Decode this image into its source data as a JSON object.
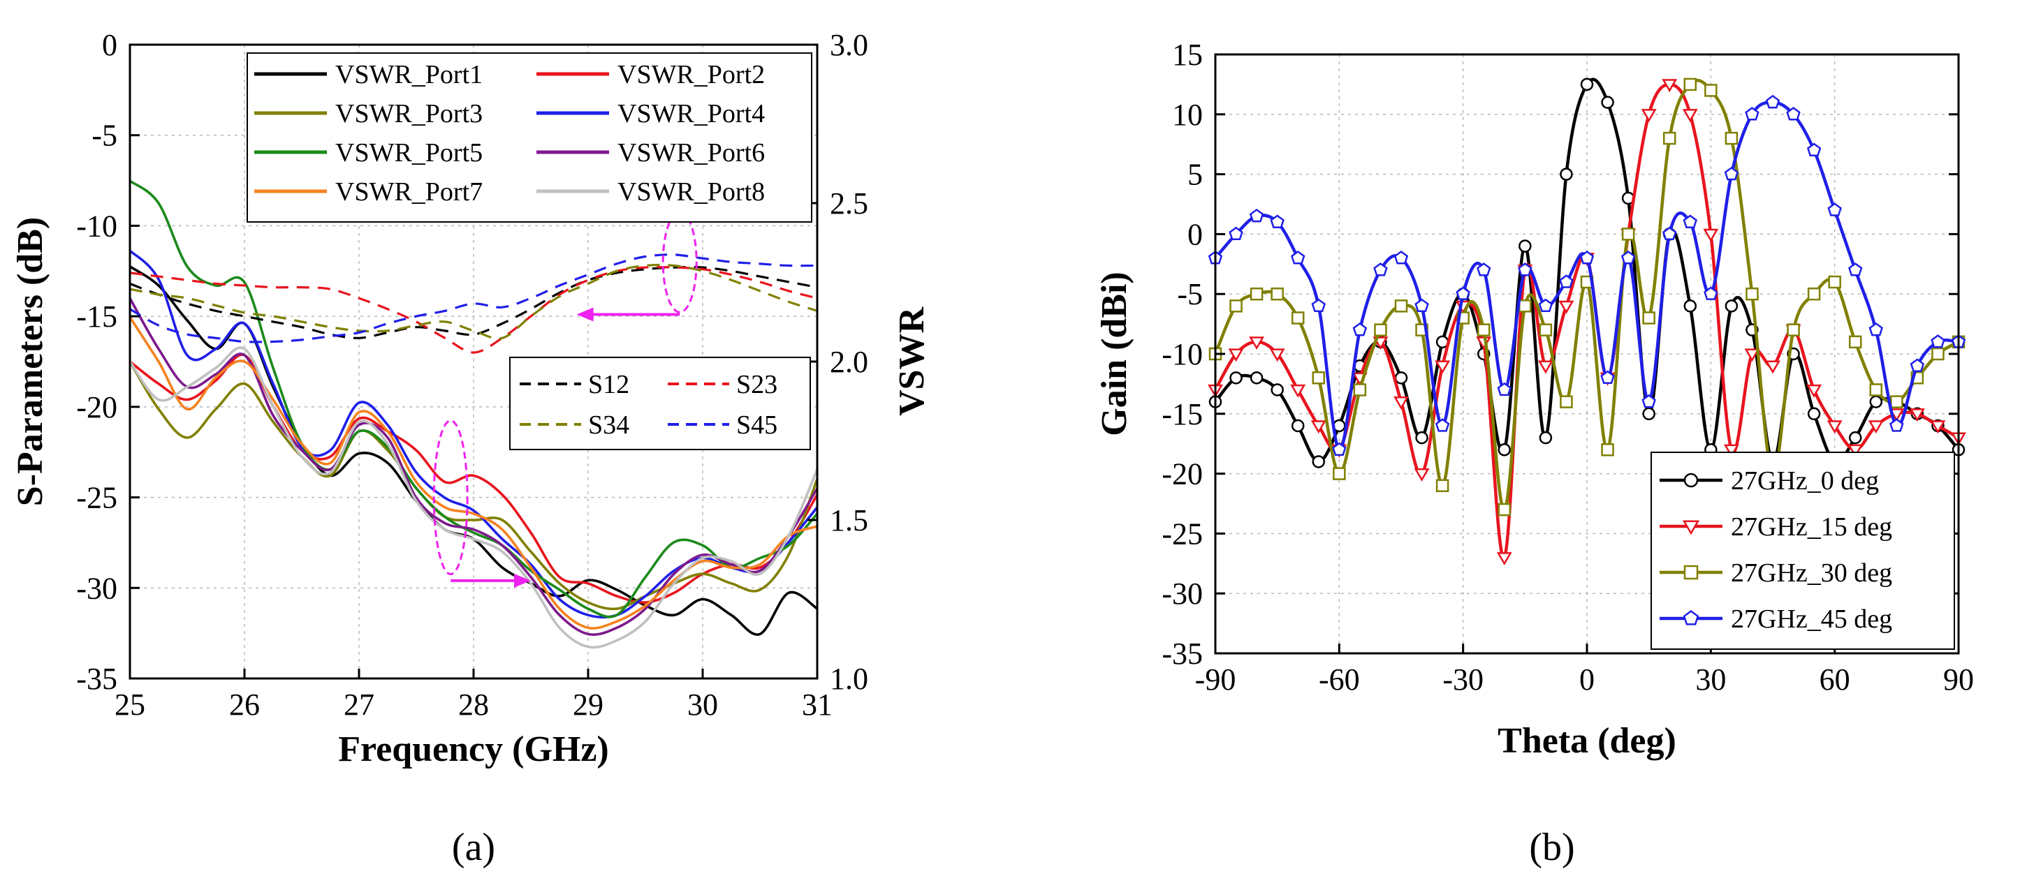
{
  "captions": {
    "a": "(a)",
    "b": "(b)"
  },
  "chart_data": [
    {
      "id": "a",
      "type": "line",
      "title": "",
      "xlabel": "Frequency (GHz)",
      "ylabel": "S-Parameters (dB)",
      "y2label": "VSWR",
      "xlim": [
        25,
        31
      ],
      "ylim": [
        -35,
        0
      ],
      "y2lim": [
        1.0,
        3.0
      ],
      "xticks": [
        "25",
        "26",
        "27",
        "28",
        "29",
        "30",
        "31"
      ],
      "yticks": [
        "0",
        "-5",
        "-10",
        "-15",
        "-20",
        "-25",
        "-30",
        "-35"
      ],
      "y2ticks": [
        "3.0",
        "2.5",
        "2.0",
        "1.5",
        "1.0"
      ],
      "grid": true,
      "legend_position": "top-right",
      "x": [
        25,
        25.25,
        25.5,
        25.75,
        26,
        26.25,
        26.5,
        26.75,
        27,
        27.25,
        27.5,
        27.75,
        28,
        28.25,
        28.5,
        28.75,
        29,
        29.25,
        29.5,
        29.75,
        30,
        30.25,
        30.5,
        30.75,
        31
      ],
      "series": [
        {
          "name": "VSWR_Port1",
          "axis": "y2",
          "color": "#000000",
          "style": "solid",
          "values": [
            2.3,
            2.24,
            2.13,
            2.04,
            2.12,
            1.92,
            1.74,
            1.64,
            1.71,
            1.68,
            1.56,
            1.47,
            1.44,
            1.35,
            1.3,
            1.26,
            1.31,
            1.28,
            1.23,
            1.2,
            1.25,
            1.2,
            1.14,
            1.27,
            1.22
          ]
        },
        {
          "name": "VSWR_Port2",
          "axis": "y2",
          "color": "#e8141e",
          "style": "solid",
          "values": [
            2.0,
            1.93,
            1.88,
            1.94,
            2.02,
            1.86,
            1.72,
            1.7,
            1.82,
            1.78,
            1.72,
            1.62,
            1.64,
            1.58,
            1.46,
            1.32,
            1.3,
            1.26,
            1.24,
            1.27,
            1.33,
            1.36,
            1.35,
            1.43,
            1.58
          ]
        },
        {
          "name": "VSWR_Port3",
          "axis": "y2",
          "color": "#808000",
          "style": "solid",
          "values": [
            2.0,
            1.85,
            1.76,
            1.85,
            1.93,
            1.81,
            1.7,
            1.64,
            1.78,
            1.72,
            1.6,
            1.51,
            1.5,
            1.5,
            1.4,
            1.3,
            1.24,
            1.22,
            1.26,
            1.3,
            1.33,
            1.3,
            1.28,
            1.39,
            1.63
          ]
        },
        {
          "name": "VSWR_Port4",
          "axis": "y2",
          "color": "#1f1fe8",
          "style": "solid",
          "values": [
            2.35,
            2.26,
            2.02,
            2.04,
            2.12,
            1.93,
            1.73,
            1.72,
            1.87,
            1.8,
            1.65,
            1.57,
            1.53,
            1.44,
            1.36,
            1.25,
            1.2,
            1.2,
            1.26,
            1.34,
            1.38,
            1.35,
            1.34,
            1.43,
            1.54
          ]
        },
        {
          "name": "VSWR_Port5",
          "axis": "y2",
          "color": "#1b8a1b",
          "style": "solid",
          "values": [
            2.57,
            2.5,
            2.3,
            2.24,
            2.25,
            1.98,
            1.74,
            1.66,
            1.78,
            1.73,
            1.6,
            1.51,
            1.46,
            1.42,
            1.34,
            1.28,
            1.22,
            1.2,
            1.32,
            1.43,
            1.42,
            1.35,
            1.38,
            1.42,
            1.52
          ]
        },
        {
          "name": "VSWR_Port6",
          "axis": "y2",
          "color": "#7d1a8c",
          "style": "solid",
          "values": [
            2.2,
            2.04,
            1.92,
            1.96,
            2.02,
            1.83,
            1.72,
            1.66,
            1.8,
            1.76,
            1.57,
            1.49,
            1.47,
            1.42,
            1.32,
            1.2,
            1.14,
            1.16,
            1.22,
            1.33,
            1.39,
            1.36,
            1.34,
            1.45,
            1.6
          ]
        },
        {
          "name": "VSWR_Port7",
          "axis": "y2",
          "color": "#f5821f",
          "style": "solid",
          "values": [
            2.14,
            2.0,
            1.85,
            1.95,
            2.0,
            1.88,
            1.74,
            1.68,
            1.84,
            1.78,
            1.62,
            1.54,
            1.52,
            1.47,
            1.35,
            1.22,
            1.16,
            1.18,
            1.23,
            1.31,
            1.37,
            1.35,
            1.36,
            1.45,
            1.48
          ]
        },
        {
          "name": "VSWR_Port8",
          "axis": "y2",
          "color": "#c0c0c0",
          "style": "solid",
          "values": [
            2.0,
            1.88,
            1.92,
            1.98,
            2.04,
            1.86,
            1.7,
            1.65,
            1.81,
            1.74,
            1.56,
            1.47,
            1.44,
            1.4,
            1.3,
            1.16,
            1.1,
            1.12,
            1.18,
            1.3,
            1.38,
            1.37,
            1.33,
            1.45,
            1.66
          ]
        },
        {
          "name": "S12",
          "axis": "y",
          "color": "#000000",
          "style": "dashed",
          "values": [
            -13.2,
            -13.8,
            -14.3,
            -14.7,
            -15,
            -15.3,
            -15.6,
            -16,
            -16.2,
            -15.9,
            -15.6,
            -15.8,
            -16,
            -15.4,
            -14.6,
            -13.7,
            -13,
            -12.6,
            -12.4,
            -12.3,
            -12.3,
            -12.5,
            -12.8,
            -13.1,
            -13.4
          ]
        },
        {
          "name": "S23",
          "axis": "y",
          "color": "#e8141e",
          "style": "dashed",
          "values": [
            -12.6,
            -12.8,
            -13,
            -13.2,
            -13.3,
            -13.4,
            -13.4,
            -13.5,
            -14,
            -14.6,
            -15.3,
            -16.2,
            -17,
            -16.2,
            -15,
            -13.8,
            -13,
            -12.5,
            -12.3,
            -12.3,
            -12.4,
            -12.7,
            -13.1,
            -13.6,
            -14
          ]
        },
        {
          "name": "S34",
          "axis": "y",
          "color": "#808000",
          "style": "dashed",
          "values": [
            -13.5,
            -13.8,
            -14,
            -14.4,
            -14.8,
            -15,
            -15.3,
            -15.6,
            -15.8,
            -15.8,
            -15.5,
            -15.3,
            -15.8,
            -16.2,
            -15,
            -13.9,
            -13.2,
            -12.5,
            -12.2,
            -12.2,
            -12.5,
            -13,
            -13.6,
            -14.2,
            -14.7
          ]
        },
        {
          "name": "S45",
          "axis": "y",
          "color": "#1f1fe8",
          "style": "dashed",
          "values": [
            -14.6,
            -15.5,
            -16,
            -16.2,
            -16.4,
            -16.4,
            -16.3,
            -16.1,
            -15.9,
            -15.4,
            -15,
            -14.7,
            -14.3,
            -14.5,
            -14,
            -13.3,
            -12.7,
            -12.1,
            -11.7,
            -11.6,
            -11.8,
            -12,
            -12.1,
            -12.2,
            -12.2
          ]
        }
      ],
      "annotations": [
        {
          "type": "ellipse",
          "color": "#ee22ee",
          "center": [
            27.8,
            -25
          ]
        },
        {
          "type": "arrow",
          "color": "#ee22ee",
          "from": [
            27.8,
            -29.6
          ],
          "to": [
            28.5,
            -29.6
          ]
        },
        {
          "type": "ellipse",
          "color": "#ee22ee",
          "center": [
            29.8,
            -12
          ]
        },
        {
          "type": "arrow",
          "color": "#ee22ee",
          "from": [
            29.8,
            -14.9
          ],
          "to": [
            28.9,
            -14.9
          ]
        }
      ]
    },
    {
      "id": "b",
      "type": "line",
      "title": "",
      "xlabel": "Theta (deg)",
      "ylabel": "Gain (dBi)",
      "xlim": [
        -90,
        90
      ],
      "ylim": [
        -35,
        15
      ],
      "xticks": [
        "-90",
        "-60",
        "-30",
        "0",
        "30",
        "60",
        "90"
      ],
      "yticks": [
        "15",
        "10",
        "5",
        "0",
        "-5",
        "-10",
        "-15",
        "-20",
        "-25",
        "-30",
        "-35"
      ],
      "grid": true,
      "legend_position": "bottom-right",
      "x": [
        -90,
        -85,
        -80,
        -75,
        -70,
        -65,
        -60,
        -55,
        -50,
        -45,
        -40,
        -35,
        -30,
        -25,
        -20,
        -15,
        -10,
        -5,
        0,
        5,
        10,
        15,
        20,
        25,
        30,
        35,
        40,
        45,
        50,
        55,
        60,
        65,
        70,
        75,
        80,
        85,
        90
      ],
      "series": [
        {
          "name": "27GHz_0 deg",
          "color": "#000000",
          "marker": "circle",
          "values": [
            -14,
            -12,
            -12,
            -13,
            -16,
            -19,
            -16,
            -11,
            -9,
            -12,
            -17,
            -9,
            -5,
            -10,
            -18,
            -1,
            -17,
            5,
            12.5,
            11,
            3,
            -15,
            0,
            -6,
            -18,
            -6,
            -8,
            -19,
            -10,
            -15,
            -19,
            -17,
            -14,
            -14,
            -15,
            -16,
            -18
          ]
        },
        {
          "name": "27GHz_15 deg",
          "color": "#e8141e",
          "marker": "triangle-down",
          "values": [
            -13,
            -10,
            -9,
            -10,
            -13,
            -16,
            -18,
            -12,
            -9,
            -14,
            -20,
            -11,
            -6,
            -9,
            -27,
            -3,
            -11,
            -6,
            -2,
            -12,
            0,
            10,
            12.5,
            10,
            0,
            -18,
            -10,
            -11,
            -8,
            -13,
            -16,
            -18,
            -16,
            -15,
            -15,
            -16,
            -17
          ]
        },
        {
          "name": "27GHz_30 deg",
          "color": "#808000",
          "marker": "square",
          "values": [
            -10,
            -6,
            -5,
            -5,
            -7,
            -12,
            -20,
            -13,
            -8,
            -6,
            -8,
            -21,
            -7,
            -8,
            -23,
            -6,
            -8,
            -14,
            -4,
            -18,
            0,
            -7,
            8,
            12.5,
            12,
            8,
            -5,
            -20,
            -8,
            -5,
            -4,
            -9,
            -13,
            -14,
            -12,
            -10,
            -9
          ]
        },
        {
          "name": "27GHz_45 deg",
          "color": "#1f1fe8",
          "marker": "pentagon",
          "values": [
            -2,
            0,
            1.5,
            1,
            -2,
            -6,
            -18,
            -8,
            -3,
            -2,
            -6,
            -16,
            -5,
            -3,
            -13,
            -3,
            -6,
            -4,
            -2,
            -12,
            -2,
            -14,
            0,
            1,
            -5,
            5,
            10,
            11,
            10,
            7,
            2,
            -3,
            -8,
            -16,
            -11,
            -9,
            -9
          ]
        }
      ]
    }
  ]
}
